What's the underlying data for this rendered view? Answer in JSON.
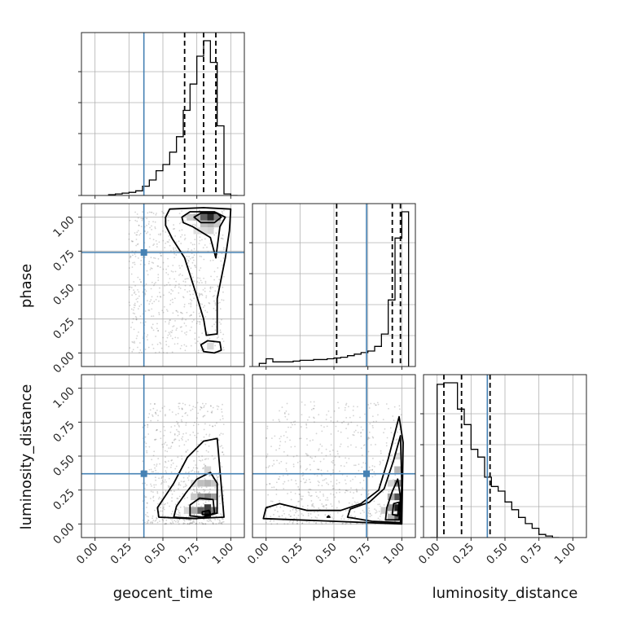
{
  "chart_data": {
    "type": "corner",
    "parameters": [
      "geocent_time",
      "phase",
      "luminosity_distance"
    ],
    "truth": {
      "geocent_time": 0.36,
      "phase": 0.74,
      "luminosity_distance": 0.37
    },
    "axis_range": [
      -0.1,
      1.1
    ],
    "ticks": [
      0,
      0.25,
      0.5,
      0.75,
      1.0
    ],
    "tick_labels": [
      "0.00",
      "0.25",
      "0.50",
      "0.75",
      "1.00"
    ],
    "grid": true,
    "marginals": {
      "geocent_time": {
        "quantiles": [
          0.66,
          0.8,
          0.89
        ],
        "bin_edges": [
          0.1,
          0.15,
          0.2,
          0.25,
          0.3,
          0.35,
          0.4,
          0.45,
          0.5,
          0.55,
          0.6,
          0.65,
          0.7,
          0.75,
          0.8,
          0.85,
          0.9,
          0.95,
          1.0,
          1.05
        ],
        "density": [
          0.005,
          0.01,
          0.015,
          0.02,
          0.03,
          0.06,
          0.1,
          0.16,
          0.2,
          0.28,
          0.38,
          0.55,
          0.72,
          0.9,
          1.0,
          0.86,
          0.45,
          0.01,
          0.0
        ]
      },
      "phase": {
        "quantiles": [
          0.52,
          0.93,
          0.99
        ],
        "bin_edges": [
          -0.05,
          0.0,
          0.05,
          0.1,
          0.15,
          0.2,
          0.25,
          0.3,
          0.35,
          0.4,
          0.45,
          0.5,
          0.55,
          0.6,
          0.65,
          0.7,
          0.75,
          0.8,
          0.85,
          0.9,
          0.95,
          1.0,
          1.05
        ],
        "density": [
          0.02,
          0.05,
          0.03,
          0.03,
          0.03,
          0.035,
          0.04,
          0.04,
          0.045,
          0.045,
          0.05,
          0.055,
          0.06,
          0.07,
          0.08,
          0.09,
          0.1,
          0.13,
          0.21,
          0.43,
          0.83,
          1.0
        ]
      },
      "luminosity_distance": {
        "quantiles": [
          0.05,
          0.18,
          0.39
        ],
        "bin_edges": [
          -0.05,
          0.0,
          0.05,
          0.1,
          0.15,
          0.2,
          0.25,
          0.3,
          0.35,
          0.4,
          0.45,
          0.5,
          0.55,
          0.6,
          0.65,
          0.7,
          0.75,
          0.8,
          0.85,
          0.9
        ],
        "density": [
          0.0,
          0.99,
          1.0,
          1.0,
          0.83,
          0.73,
          0.57,
          0.52,
          0.39,
          0.33,
          0.3,
          0.23,
          0.18,
          0.13,
          0.09,
          0.06,
          0.02,
          0.01,
          0.0
        ]
      }
    },
    "joints": [
      {
        "x": "geocent_time",
        "y": "phase",
        "sample_box": {
          "x": [
            0.25,
            0.95
          ],
          "y": [
            0.0,
            1.05
          ]
        },
        "density_cells": [
          {
            "x": 0.85,
            "y": 1.0,
            "v": 0.95
          },
          {
            "x": 0.8,
            "y": 1.0,
            "v": 0.7
          },
          {
            "x": 0.9,
            "y": 1.0,
            "v": 0.55
          },
          {
            "x": 0.75,
            "y": 1.0,
            "v": 0.3
          },
          {
            "x": 0.85,
            "y": 0.95,
            "v": 0.3
          },
          {
            "x": 0.8,
            "y": 0.95,
            "v": 0.25
          },
          {
            "x": 0.7,
            "y": 1.0,
            "v": 0.18
          },
          {
            "x": 0.9,
            "y": 0.95,
            "v": 0.2
          },
          {
            "x": 0.85,
            "y": 0.9,
            "v": 0.15
          },
          {
            "x": 0.8,
            "y": 0.9,
            "v": 0.12
          },
          {
            "x": 0.75,
            "y": 0.9,
            "v": 0.1
          },
          {
            "x": 0.85,
            "y": 0.05,
            "v": 0.12
          }
        ],
        "contours": [
          [
            [
              0.52,
              1.0
            ],
            [
              0.55,
              1.06
            ],
            [
              0.8,
              1.07
            ],
            [
              1.0,
              1.06
            ],
            [
              0.99,
              0.9
            ],
            [
              0.96,
              0.7
            ],
            [
              0.9,
              0.4
            ],
            [
              0.9,
              0.14
            ],
            [
              0.82,
              0.13
            ],
            [
              0.8,
              0.25
            ],
            [
              0.74,
              0.45
            ],
            [
              0.66,
              0.7
            ],
            [
              0.57,
              0.84
            ],
            [
              0.52,
              0.94
            ]
          ],
          [
            [
              0.64,
              1.0
            ],
            [
              0.7,
              1.04
            ],
            [
              0.88,
              1.04
            ],
            [
              0.96,
              1.0
            ],
            [
              0.92,
              0.93
            ],
            [
              0.89,
              0.7
            ],
            [
              0.85,
              0.85
            ],
            [
              0.72,
              0.93
            ],
            [
              0.65,
              0.96
            ]
          ],
          [
            [
              0.73,
              1.0
            ],
            [
              0.78,
              1.03
            ],
            [
              0.9,
              1.03
            ],
            [
              0.93,
              1.0
            ],
            [
              0.88,
              0.96
            ],
            [
              0.78,
              0.96
            ]
          ],
          [
            [
              0.8,
              0.01
            ],
            [
              0.78,
              0.06
            ],
            [
              0.83,
              0.09
            ],
            [
              0.92,
              0.08
            ],
            [
              0.93,
              0.02
            ],
            [
              0.88,
              0.0
            ]
          ]
        ]
      },
      {
        "x": "geocent_time",
        "y": "luminosity_distance",
        "sample_box": {
          "x": [
            0.35,
            0.95
          ],
          "y": [
            0.0,
            0.9
          ]
        },
        "density_cells": [
          {
            "x": 0.83,
            "y": 0.07,
            "v": 1.0
          },
          {
            "x": 0.83,
            "y": 0.12,
            "v": 0.85
          },
          {
            "x": 0.78,
            "y": 0.1,
            "v": 0.7
          },
          {
            "x": 0.88,
            "y": 0.1,
            "v": 0.6
          },
          {
            "x": 0.83,
            "y": 0.2,
            "v": 0.55
          },
          {
            "x": 0.78,
            "y": 0.2,
            "v": 0.45
          },
          {
            "x": 0.88,
            "y": 0.2,
            "v": 0.4
          },
          {
            "x": 0.73,
            "y": 0.1,
            "v": 0.35
          },
          {
            "x": 0.83,
            "y": 0.3,
            "v": 0.3
          },
          {
            "x": 0.78,
            "y": 0.3,
            "v": 0.25
          },
          {
            "x": 0.88,
            "y": 0.3,
            "v": 0.22
          },
          {
            "x": 0.73,
            "y": 0.2,
            "v": 0.2
          },
          {
            "x": 0.68,
            "y": 0.1,
            "v": 0.15
          },
          {
            "x": 0.83,
            "y": 0.4,
            "v": 0.15
          },
          {
            "x": 0.73,
            "y": 0.3,
            "v": 0.12
          }
        ],
        "contours": [
          [
            [
              0.47,
              0.05
            ],
            [
              0.46,
              0.12
            ],
            [
              0.58,
              0.3
            ],
            [
              0.68,
              0.49
            ],
            [
              0.8,
              0.61
            ],
            [
              0.9,
              0.63
            ],
            [
              0.92,
              0.4
            ],
            [
              0.95,
              0.05
            ],
            [
              0.7,
              0.04
            ]
          ],
          [
            [
              0.58,
              0.05
            ],
            [
              0.6,
              0.13
            ],
            [
              0.67,
              0.23
            ],
            [
              0.75,
              0.33
            ],
            [
              0.85,
              0.38
            ],
            [
              0.9,
              0.3
            ],
            [
              0.9,
              0.08
            ],
            [
              0.75,
              0.04
            ]
          ],
          [
            [
              0.7,
              0.06
            ],
            [
              0.7,
              0.14
            ],
            [
              0.77,
              0.19
            ],
            [
              0.87,
              0.18
            ],
            [
              0.88,
              0.08
            ],
            [
              0.8,
              0.05
            ]
          ],
          [
            [
              0.79,
              0.07
            ],
            [
              0.79,
              0.09
            ],
            [
              0.84,
              0.1
            ],
            [
              0.85,
              0.07
            ]
          ]
        ]
      },
      {
        "x": "phase",
        "y": "luminosity_distance",
        "sample_box": {
          "x": [
            0.0,
            1.0
          ],
          "y": [
            0.0,
            0.9
          ]
        },
        "density_cells": [
          {
            "x": 0.97,
            "y": 0.12,
            "v": 1.0
          },
          {
            "x": 0.97,
            "y": 0.2,
            "v": 0.75
          },
          {
            "x": 0.97,
            "y": 0.05,
            "v": 0.7
          },
          {
            "x": 0.97,
            "y": 0.3,
            "v": 0.5
          },
          {
            "x": 0.92,
            "y": 0.12,
            "v": 0.45
          },
          {
            "x": 0.92,
            "y": 0.2,
            "v": 0.35
          },
          {
            "x": 0.97,
            "y": 0.4,
            "v": 0.3
          },
          {
            "x": 0.92,
            "y": 0.05,
            "v": 0.3
          },
          {
            "x": 0.87,
            "y": 0.1,
            "v": 0.18
          },
          {
            "x": 0.97,
            "y": 0.5,
            "v": 0.15
          },
          {
            "x": 0.92,
            "y": 0.3,
            "v": 0.15
          }
        ],
        "contours": [
          [
            [
              -0.02,
              0.04
            ],
            [
              0.0,
              0.12
            ],
            [
              0.1,
              0.15
            ],
            [
              0.3,
              0.1
            ],
            [
              0.55,
              0.1
            ],
            [
              0.7,
              0.15
            ],
            [
              0.83,
              0.25
            ],
            [
              0.9,
              0.48
            ],
            [
              0.98,
              0.79
            ],
            [
              1.01,
              0.6
            ],
            [
              1.0,
              0.0
            ],
            [
              0.5,
              0.02
            ]
          ],
          [
            [
              0.6,
              0.05
            ],
            [
              0.62,
              0.11
            ],
            [
              0.76,
              0.16
            ],
            [
              0.87,
              0.26
            ],
            [
              0.94,
              0.47
            ],
            [
              0.99,
              0.65
            ],
            [
              1.0,
              0.3
            ],
            [
              0.99,
              0.01
            ],
            [
              0.78,
              0.02
            ]
          ],
          [
            [
              0.88,
              0.03
            ],
            [
              0.89,
              0.12
            ],
            [
              0.93,
              0.24
            ],
            [
              0.97,
              0.33
            ],
            [
              0.99,
              0.2
            ],
            [
              0.98,
              0.03
            ]
          ],
          [
            [
              0.93,
              0.07
            ],
            [
              0.94,
              0.15
            ],
            [
              0.98,
              0.16
            ],
            [
              0.97,
              0.06
            ]
          ],
          [
            [
              0.45,
              0.05
            ],
            [
              0.46,
              0.06
            ],
            [
              0.47,
              0.05
            ]
          ]
        ]
      }
    ]
  }
}
